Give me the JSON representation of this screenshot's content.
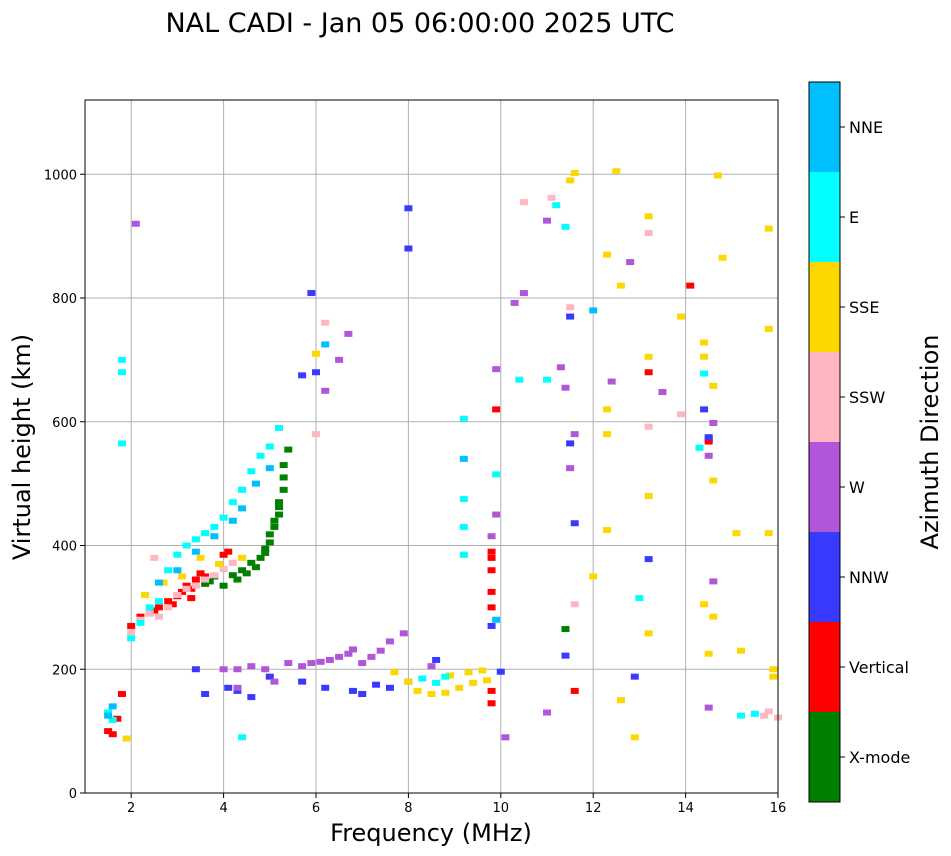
{
  "chart_data": {
    "type": "scatter",
    "title": "NAL CADI - Jan 05 06:00:00 2025 UTC",
    "xlabel": "Frequency (MHz)",
    "ylabel": "Virtual height (km)",
    "xlim": [
      1,
      16
    ],
    "ylim": [
      0,
      1120
    ],
    "xticks": [
      2,
      4,
      6,
      8,
      10,
      12,
      14,
      16
    ],
    "yticks": [
      0,
      200,
      400,
      600,
      800,
      1000
    ],
    "grid": true,
    "colorbar": {
      "label": "Azimuth Direction",
      "categories": [
        "X-mode",
        "Vertical",
        "NNW",
        "W",
        "SSW",
        "SSE",
        "E",
        "NNE"
      ],
      "colors": {
        "X-mode": "#008000",
        "Vertical": "#ff0000",
        "NNW": "#3a3aff",
        "W": "#b256d9",
        "SSW": "#ffb6c1",
        "SSE": "#ffd700",
        "E": "#00ffff",
        "NNE": "#00bfff"
      }
    },
    "series": [
      {
        "name": "X-mode",
        "points": [
          [
            3.6,
            338
          ],
          [
            3.7,
            342
          ],
          [
            3.8,
            350
          ],
          [
            4.0,
            335
          ],
          [
            4.2,
            352
          ],
          [
            4.4,
            360
          ],
          [
            4.6,
            372
          ],
          [
            4.8,
            380
          ],
          [
            4.9,
            395
          ],
          [
            5.0,
            405
          ],
          [
            5.0,
            418
          ],
          [
            5.1,
            430
          ],
          [
            5.2,
            450
          ],
          [
            5.2,
            470
          ],
          [
            5.3,
            490
          ],
          [
            5.3,
            510
          ],
          [
            5.3,
            530
          ],
          [
            5.4,
            555
          ],
          [
            4.3,
            345
          ],
          [
            4.5,
            355
          ],
          [
            4.7,
            365
          ],
          [
            4.9,
            388
          ],
          [
            5.1,
            440
          ],
          [
            5.2,
            462
          ],
          [
            11.4,
            265
          ]
        ]
      },
      {
        "name": "Vertical",
        "points": [
          [
            1.5,
            100
          ],
          [
            1.6,
            95
          ],
          [
            1.7,
            120
          ],
          [
            1.8,
            160
          ],
          [
            2.0,
            270
          ],
          [
            2.2,
            285
          ],
          [
            2.4,
            290
          ],
          [
            2.6,
            300
          ],
          [
            2.8,
            310
          ],
          [
            3.0,
            318
          ],
          [
            3.1,
            325
          ],
          [
            3.2,
            335
          ],
          [
            3.3,
            330
          ],
          [
            3.4,
            345
          ],
          [
            3.5,
            355
          ],
          [
            3.6,
            350
          ],
          [
            4.0,
            385
          ],
          [
            4.1,
            390
          ],
          [
            3.3,
            315
          ],
          [
            2.9,
            305
          ],
          [
            2.5,
            295
          ],
          [
            9.8,
            390
          ],
          [
            9.8,
            380
          ],
          [
            9.8,
            360
          ],
          [
            9.8,
            325
          ],
          [
            9.8,
            300
          ],
          [
            9.9,
            620
          ],
          [
            9.8,
            165
          ],
          [
            9.8,
            145
          ],
          [
            11.6,
            165
          ],
          [
            13.2,
            680
          ],
          [
            14.1,
            820
          ],
          [
            14.5,
            572
          ],
          [
            14.5,
            568
          ]
        ]
      },
      {
        "name": "NNW",
        "points": [
          [
            3.4,
            200
          ],
          [
            3.6,
            160
          ],
          [
            4.1,
            170
          ],
          [
            4.3,
            165
          ],
          [
            4.6,
            155
          ],
          [
            5.0,
            188
          ],
          [
            5.7,
            180
          ],
          [
            6.2,
            170
          ],
          [
            6.8,
            165
          ],
          [
            7.0,
            160
          ],
          [
            7.3,
            175
          ],
          [
            7.6,
            170
          ],
          [
            8.0,
            180
          ],
          [
            8.6,
            215
          ],
          [
            9.8,
            270
          ],
          [
            10.0,
            196
          ],
          [
            11.4,
            222
          ],
          [
            11.5,
            565
          ],
          [
            11.5,
            770
          ],
          [
            11.6,
            436
          ],
          [
            12.9,
            188
          ],
          [
            13.2,
            378
          ],
          [
            14.4,
            620
          ],
          [
            14.5,
            575
          ],
          [
            8.0,
            880
          ],
          [
            8.0,
            945
          ],
          [
            5.9,
            808
          ],
          [
            6.0,
            680
          ],
          [
            5.7,
            675
          ]
        ]
      },
      {
        "name": "W",
        "points": [
          [
            2.1,
            920
          ],
          [
            4.0,
            200
          ],
          [
            4.3,
            200
          ],
          [
            4.6,
            205
          ],
          [
            4.9,
            200
          ],
          [
            5.1,
            180
          ],
          [
            5.4,
            210
          ],
          [
            5.7,
            205
          ],
          [
            5.9,
            210
          ],
          [
            6.1,
            212
          ],
          [
            6.3,
            215
          ],
          [
            6.5,
            220
          ],
          [
            6.7,
            225
          ],
          [
            6.8,
            232
          ],
          [
            7.0,
            210
          ],
          [
            7.2,
            220
          ],
          [
            7.4,
            230
          ],
          [
            7.6,
            245
          ],
          [
            7.9,
            258
          ],
          [
            8.5,
            205
          ],
          [
            9.9,
            450
          ],
          [
            9.8,
            415
          ],
          [
            9.9,
            685
          ],
          [
            10.1,
            90
          ],
          [
            10.3,
            792
          ],
          [
            10.5,
            808
          ],
          [
            11.0,
            130
          ],
          [
            11.0,
            925
          ],
          [
            11.3,
            688
          ],
          [
            11.4,
            655
          ],
          [
            11.5,
            525
          ],
          [
            11.6,
            580
          ],
          [
            12.4,
            665
          ],
          [
            12.8,
            858
          ],
          [
            13.5,
            648
          ],
          [
            14.5,
            138
          ],
          [
            14.6,
            598
          ],
          [
            14.5,
            545
          ],
          [
            14.6,
            342
          ],
          [
            6.7,
            742
          ],
          [
            6.5,
            700
          ],
          [
            6.2,
            650
          ],
          [
            4.3,
            170
          ]
        ]
      },
      {
        "name": "SSW",
        "points": [
          [
            2.0,
            260
          ],
          [
            2.2,
            280
          ],
          [
            2.4,
            290
          ],
          [
            2.6,
            285
          ],
          [
            2.8,
            300
          ],
          [
            3.0,
            320
          ],
          [
            3.2,
            330
          ],
          [
            3.4,
            335
          ],
          [
            3.6,
            345
          ],
          [
            3.8,
            352
          ],
          [
            4.0,
            362
          ],
          [
            4.2,
            372
          ],
          [
            2.5,
            380
          ],
          [
            6.0,
            580
          ],
          [
            6.2,
            760
          ],
          [
            10.5,
            955
          ],
          [
            11.1,
            962
          ],
          [
            11.5,
            785
          ],
          [
            11.6,
            305
          ],
          [
            13.2,
            905
          ],
          [
            13.2,
            592
          ],
          [
            13.9,
            612
          ],
          [
            15.7,
            125
          ],
          [
            15.8,
            132
          ],
          [
            16.0,
            122
          ]
        ]
      },
      {
        "name": "SSE",
        "points": [
          [
            1.9,
            88
          ],
          [
            2.3,
            320
          ],
          [
            2.7,
            340
          ],
          [
            3.1,
            350
          ],
          [
            3.5,
            380
          ],
          [
            3.9,
            370
          ],
          [
            4.4,
            380
          ],
          [
            6.0,
            710
          ],
          [
            7.7,
            195
          ],
          [
            8.0,
            180
          ],
          [
            8.2,
            165
          ],
          [
            8.5,
            160
          ],
          [
            8.8,
            162
          ],
          [
            9.1,
            170
          ],
          [
            9.4,
            178
          ],
          [
            9.7,
            182
          ],
          [
            8.9,
            190
          ],
          [
            9.3,
            195
          ],
          [
            9.6,
            198
          ],
          [
            11.5,
            990
          ],
          [
            11.6,
            1002
          ],
          [
            12.5,
            1005
          ],
          [
            12.3,
            870
          ],
          [
            12.6,
            820
          ],
          [
            12.3,
            620
          ],
          [
            12.3,
            580
          ],
          [
            12.3,
            425
          ],
          [
            12.0,
            350
          ],
          [
            12.6,
            150
          ],
          [
            12.9,
            90
          ],
          [
            13.2,
            480
          ],
          [
            13.2,
            258
          ],
          [
            13.2,
            705
          ],
          [
            13.2,
            932
          ],
          [
            13.9,
            770
          ],
          [
            14.4,
            728
          ],
          [
            14.4,
            705
          ],
          [
            14.6,
            658
          ],
          [
            14.6,
            505
          ],
          [
            14.6,
            285
          ],
          [
            14.4,
            305
          ],
          [
            14.5,
            225
          ],
          [
            14.8,
            865
          ],
          [
            14.7,
            998
          ],
          [
            15.1,
            420
          ],
          [
            15.2,
            230
          ],
          [
            15.8,
            420
          ],
          [
            15.8,
            912
          ],
          [
            15.8,
            750
          ],
          [
            15.9,
            200
          ],
          [
            15.9,
            188
          ]
        ]
      },
      {
        "name": "E",
        "points": [
          [
            1.5,
            130
          ],
          [
            1.6,
            118
          ],
          [
            1.8,
            700
          ],
          [
            1.8,
            680
          ],
          [
            1.8,
            565
          ],
          [
            2.0,
            250
          ],
          [
            2.2,
            275
          ],
          [
            2.4,
            300
          ],
          [
            2.6,
            310
          ],
          [
            2.8,
            360
          ],
          [
            3.0,
            385
          ],
          [
            3.2,
            400
          ],
          [
            3.4,
            410
          ],
          [
            3.6,
            420
          ],
          [
            3.8,
            430
          ],
          [
            4.0,
            445
          ],
          [
            4.2,
            470
          ],
          [
            4.4,
            490
          ],
          [
            4.6,
            520
          ],
          [
            4.8,
            545
          ],
          [
            5.0,
            560
          ],
          [
            5.2,
            590
          ],
          [
            4.4,
            90
          ],
          [
            8.3,
            185
          ],
          [
            8.6,
            178
          ],
          [
            8.8,
            188
          ],
          [
            9.2,
            605
          ],
          [
            9.2,
            475
          ],
          [
            9.2,
            430
          ],
          [
            9.2,
            385
          ],
          [
            9.9,
            515
          ],
          [
            10.4,
            668
          ],
          [
            11.0,
            668
          ],
          [
            11.2,
            950
          ],
          [
            11.4,
            915
          ],
          [
            13.0,
            315
          ],
          [
            14.4,
            678
          ],
          [
            14.3,
            558
          ],
          [
            15.2,
            125
          ],
          [
            15.5,
            128
          ]
        ]
      },
      {
        "name": "NNE",
        "points": [
          [
            1.5,
            125
          ],
          [
            1.6,
            140
          ],
          [
            2.6,
            340
          ],
          [
            3.0,
            360
          ],
          [
            3.4,
            390
          ],
          [
            3.8,
            415
          ],
          [
            4.2,
            440
          ],
          [
            4.4,
            460
          ],
          [
            4.7,
            500
          ],
          [
            5.0,
            525
          ],
          [
            6.2,
            725
          ],
          [
            9.2,
            540
          ],
          [
            9.9,
            280
          ],
          [
            12.0,
            780
          ]
        ]
      }
    ]
  }
}
